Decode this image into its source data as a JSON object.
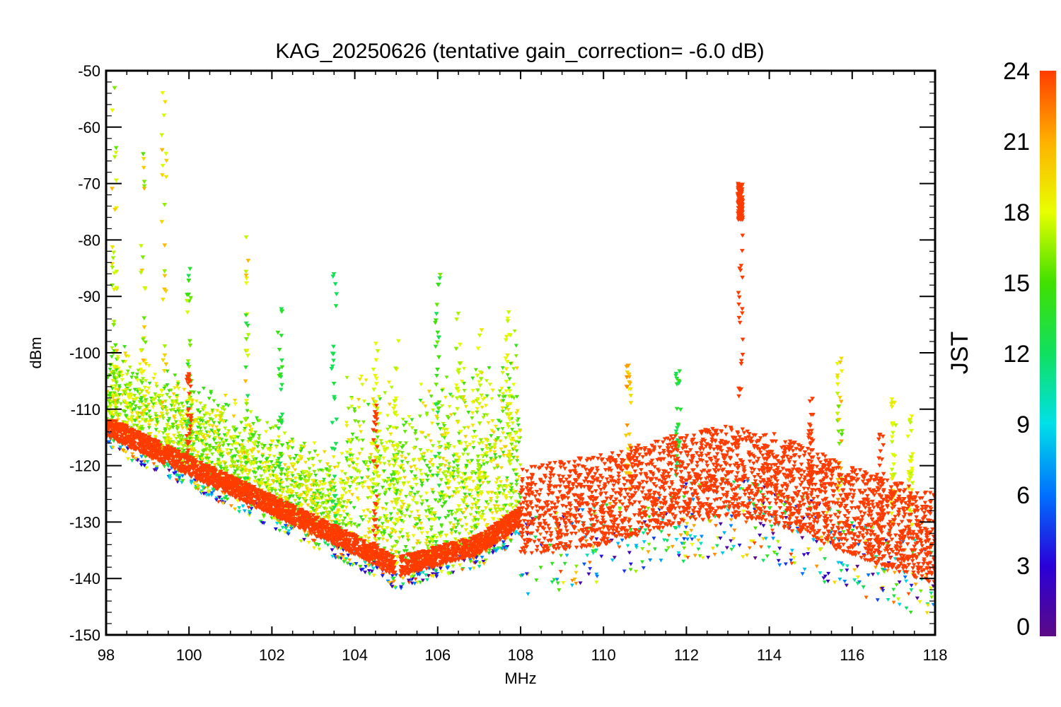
{
  "chart_data": {
    "type": "scatter",
    "title": "KAG_20250626 (tentative gain_correction= -6.0 dB)",
    "xlabel": "MHz",
    "ylabel": "dBm",
    "xlim": [
      98,
      118
    ],
    "ylim": [
      -150,
      -50
    ],
    "xticks": [
      "98",
      "100",
      "102",
      "104",
      "106",
      "108",
      "110",
      "112",
      "114",
      "116",
      "118"
    ],
    "yticks": [
      "-50",
      "-60",
      "-70",
      "-80",
      "-90",
      "-100",
      "-110",
      "-120",
      "-130",
      "-140",
      "-150"
    ],
    "grid": false,
    "colorbar": {
      "label": "JST",
      "range": [
        0,
        24
      ],
      "ticks": [
        "0",
        "3",
        "6",
        "9",
        "12",
        "15",
        "18",
        "21",
        "24"
      ],
      "colormap": "rainbow",
      "colors": [
        "#5b0a86",
        "#2a00d8",
        "#0070ff",
        "#00e0e8",
        "#10e060",
        "#40e000",
        "#e8ff00",
        "#ffb000",
        "#ff3c00"
      ]
    },
    "noise_floor": {
      "description_values_dBm": true,
      "x": [
        98,
        100,
        102,
        104,
        105,
        106,
        107,
        108,
        108.1,
        110,
        112,
        113,
        114,
        116,
        118
      ],
      "y": [
        -113,
        -120,
        -127,
        -134,
        -138,
        -136,
        -134,
        -129,
        -128,
        -126,
        -122,
        -121,
        -122,
        -128,
        -133
      ]
    },
    "spectral_lines": [
      {
        "x": 98.2,
        "peak": -52,
        "jst_range": [
          15,
          21
        ]
      },
      {
        "x": 98.9,
        "peak": -63,
        "jst_range": [
          15,
          21
        ]
      },
      {
        "x": 99.4,
        "peak": -53,
        "jst_range": [
          15,
          21
        ]
      },
      {
        "x": 100.0,
        "peak": -84,
        "jst_range": [
          12,
          18
        ]
      },
      {
        "x": 100.0,
        "peak": -101,
        "jst_range": [
          24,
          24
        ]
      },
      {
        "x": 101.4,
        "peak": -77,
        "jst_range": [
          12,
          21
        ]
      },
      {
        "x": 102.2,
        "peak": -90,
        "jst_range": [
          12,
          15
        ]
      },
      {
        "x": 103.5,
        "peak": -86,
        "jst_range": [
          12,
          13
        ]
      },
      {
        "x": 104.5,
        "peak": -98,
        "jst_range": [
          17,
          19
        ]
      },
      {
        "x": 104.5,
        "peak": -109,
        "jst_range": [
          24,
          24
        ]
      },
      {
        "x": 105.0,
        "peak": -97,
        "jst_range": [
          17,
          19
        ]
      },
      {
        "x": 106.0,
        "peak": -84,
        "jst_range": [
          12,
          16
        ]
      },
      {
        "x": 106.5,
        "peak": -93,
        "jst_range": [
          16,
          19
        ]
      },
      {
        "x": 107.0,
        "peak": -95,
        "jst_range": [
          16,
          19
        ]
      },
      {
        "x": 107.7,
        "peak": -92,
        "jst_range": [
          17,
          19
        ]
      },
      {
        "x": 110.6,
        "peak": -100,
        "jst_range": [
          18,
          22
        ]
      },
      {
        "x": 111.8,
        "peak": -103,
        "jst_range": [
          12,
          15
        ]
      },
      {
        "x": 113.3,
        "peak": -70,
        "jst_range": [
          24,
          24
        ]
      },
      {
        "x": 115.0,
        "peak": -108,
        "jst_range": [
          24,
          24
        ]
      },
      {
        "x": 115.7,
        "peak": -100,
        "jst_range": [
          15,
          22
        ]
      },
      {
        "x": 116.7,
        "peak": -114,
        "jst_range": [
          24,
          24
        ]
      },
      {
        "x": 117.0,
        "peak": -108,
        "jst_range": [
          17,
          19
        ]
      },
      {
        "x": 117.4,
        "peak": -110,
        "jst_range": [
          17,
          19
        ]
      }
    ]
  }
}
